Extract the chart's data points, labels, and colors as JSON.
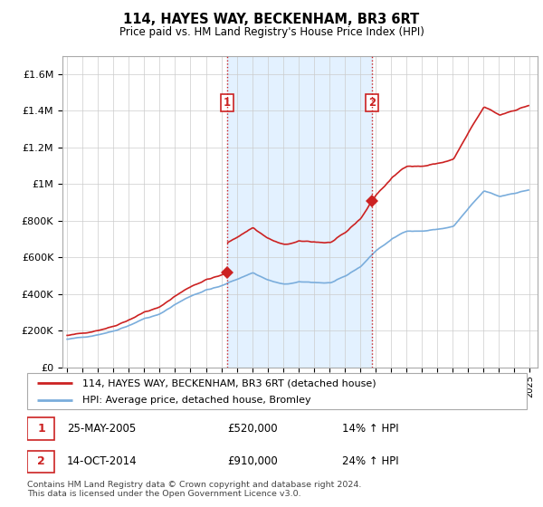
{
  "title": "114, HAYES WAY, BECKENHAM, BR3 6RT",
  "subtitle": "Price paid vs. HM Land Registry's House Price Index (HPI)",
  "ylabel_ticks": [
    "£0",
    "£200K",
    "£400K",
    "£600K",
    "£800K",
    "£1M",
    "£1.2M",
    "£1.4M",
    "£1.6M"
  ],
  "ytick_values": [
    0,
    200000,
    400000,
    600000,
    800000,
    1000000,
    1200000,
    1400000,
    1600000
  ],
  "ylim": [
    0,
    1700000
  ],
  "xlim_start": 1994.7,
  "xlim_end": 2025.5,
  "purchase1_year": 2005,
  "purchase1_month": 5,
  "purchase1_price": 520000,
  "purchase2_year": 2014,
  "purchase2_month": 10,
  "purchase2_price": 910000,
  "sale_color": "#cc2222",
  "hpi_color": "#7aaddc",
  "vline_color": "#cc2222",
  "shade_color": "#ddeeff",
  "legend_label1": "114, HAYES WAY, BECKENHAM, BR3 6RT (detached house)",
  "legend_label2": "HPI: Average price, detached house, Bromley",
  "note1_date": "25-MAY-2005",
  "note1_price": "£520,000",
  "note1_hpi": "14% ↑ HPI",
  "note2_date": "14-OCT-2014",
  "note2_price": "£910,000",
  "note2_hpi": "24% ↑ HPI",
  "footer": "Contains HM Land Registry data © Crown copyright and database right 2024.\nThis data is licensed under the Open Government Licence v3.0."
}
